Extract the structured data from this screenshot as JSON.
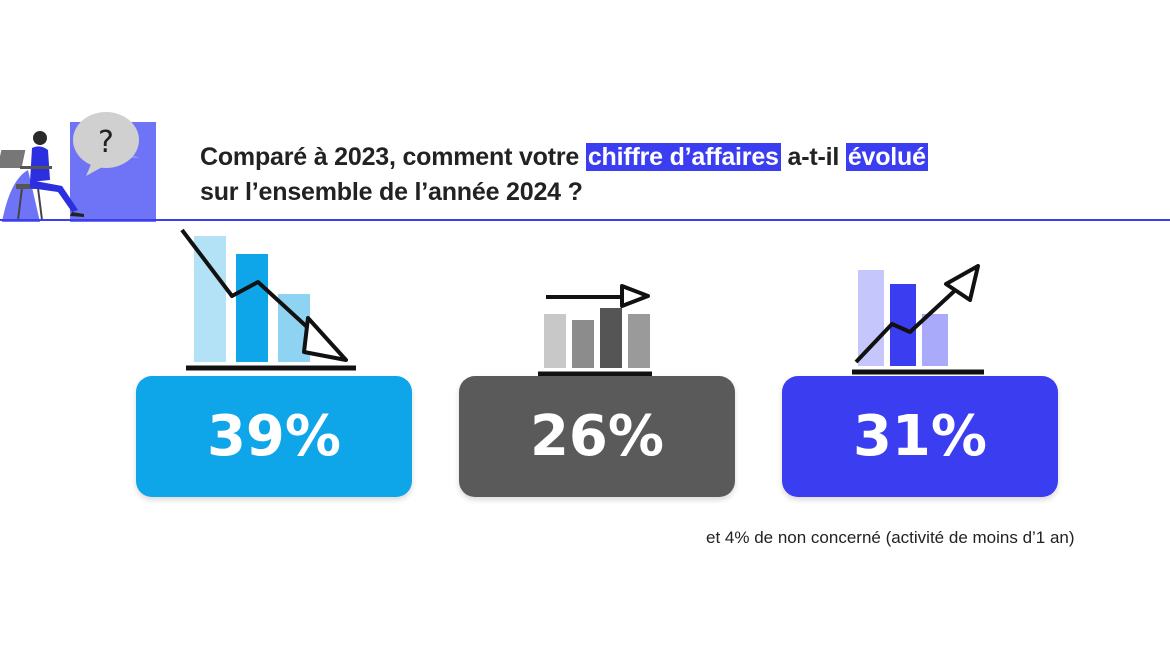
{
  "question": {
    "part1": "Comparé à 2023, comment votre ",
    "highlight1": "chiffre d’affaires",
    "part2": " a-t-il ",
    "highlight2": "évolué",
    "line2": "sur l’ensemble de l’année 2024 ?"
  },
  "colors": {
    "accent": "#3b3df0",
    "decrease": "#0ea5e9",
    "stable": "#5a5a5a",
    "increase": "#3b3df0"
  },
  "chart_data": {
    "type": "bar",
    "categories": [
      "Baisse",
      "Stable",
      "Hausse"
    ],
    "values": [
      39,
      26,
      31
    ],
    "value_labels": [
      "39%",
      "26%",
      "31%"
    ],
    "unit": "%"
  },
  "footnote": "et 4% de non concerné (activité de moins d’1 an)"
}
